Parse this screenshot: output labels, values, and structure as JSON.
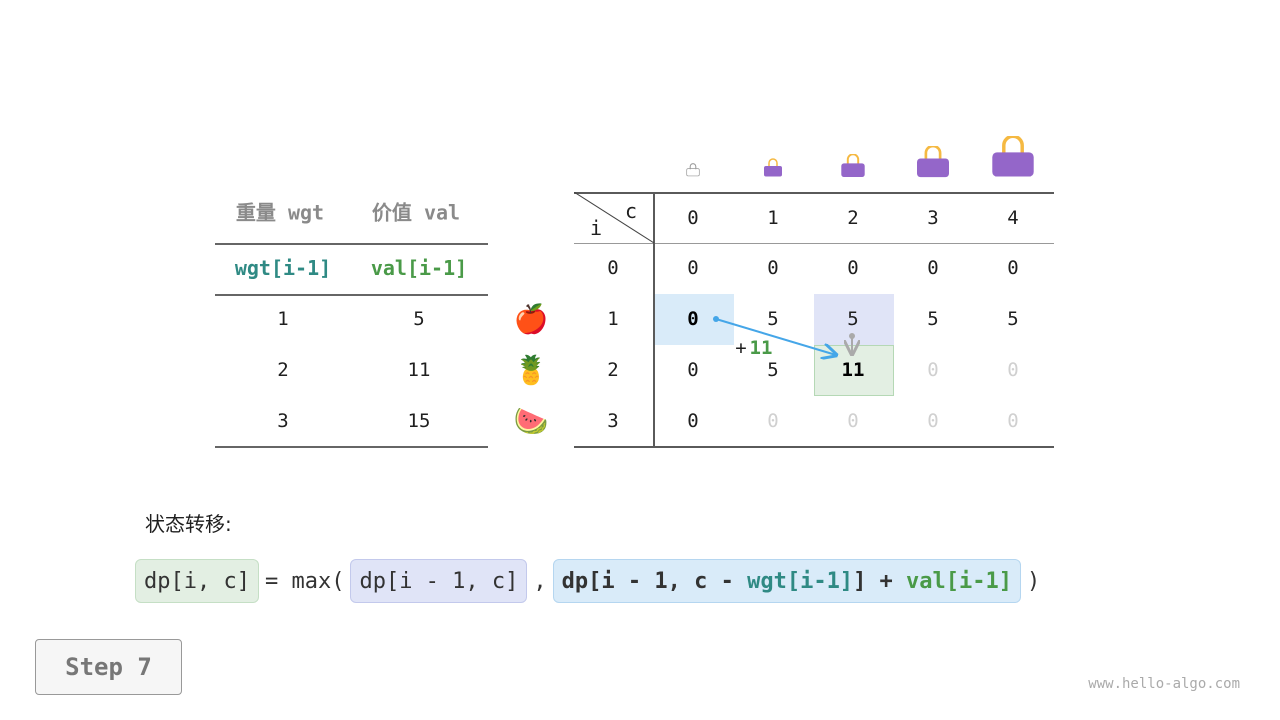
{
  "items_table": {
    "headers": [
      "重量 wgt",
      "价值 val"
    ],
    "subheaders": [
      "wgt[i-1]",
      "val[i-1]"
    ],
    "rows": [
      [
        "1",
        "5"
      ],
      [
        "2",
        "11"
      ],
      [
        "3",
        "15"
      ]
    ],
    "fruit_icons": [
      "apple-icon",
      "pineapple-icon",
      "watermelon-icon"
    ],
    "fruit_glyphs": [
      "🍎",
      "🍍",
      "🍉"
    ]
  },
  "dp_table": {
    "corner_c": "c",
    "corner_i": "i",
    "col_headers": [
      "0",
      "1",
      "2",
      "3",
      "4"
    ],
    "row_headers": [
      "0",
      "1",
      "2",
      "3"
    ],
    "cells": [
      [
        "0",
        "0",
        "0",
        "0",
        "0"
      ],
      [
        "0",
        "5",
        "5",
        "5",
        "5"
      ],
      [
        "0",
        "5",
        "11",
        "0",
        "0"
      ],
      [
        "0",
        "0",
        "0",
        "0",
        "0"
      ]
    ],
    "dim_cells": [
      [
        2,
        3
      ],
      [
        2,
        4
      ],
      [
        3,
        1
      ],
      [
        3,
        2
      ],
      [
        3,
        3
      ],
      [
        3,
        4
      ]
    ],
    "highlights": {
      "source_diag": [
        1,
        0
      ],
      "source_up": [
        1,
        2
      ],
      "target": [
        2,
        2
      ]
    },
    "bag_icons": [
      "empty-bag-icon",
      "bag-icon",
      "bag-icon",
      "bag-icon",
      "bag-icon"
    ],
    "arrow_label_plus": "+",
    "arrow_label_value": "11"
  },
  "formula": {
    "label": "状态转移:",
    "lhs": "dp[i, c]",
    "eq": "= max(",
    "opt1": "dp[i - 1, c]",
    "comma": ",",
    "opt2_a": "dp[i - 1, c - ",
    "opt2_wgt": "wgt[i-1]",
    "opt2_b": "] + ",
    "opt2_val": "val[i-1]",
    "close": ")"
  },
  "colors": {
    "teal": "#2f8a84",
    "green": "#4a9a48",
    "blue_hl": "#d9ebf9",
    "purple_hl": "#e0e4f7",
    "green_hl": "#e3efe3",
    "bag": "#9466c9",
    "handle": "#f5b942",
    "arrow": "#45a6e8"
  },
  "step_label": "Step 7",
  "watermark": "www.hello-algo.com"
}
